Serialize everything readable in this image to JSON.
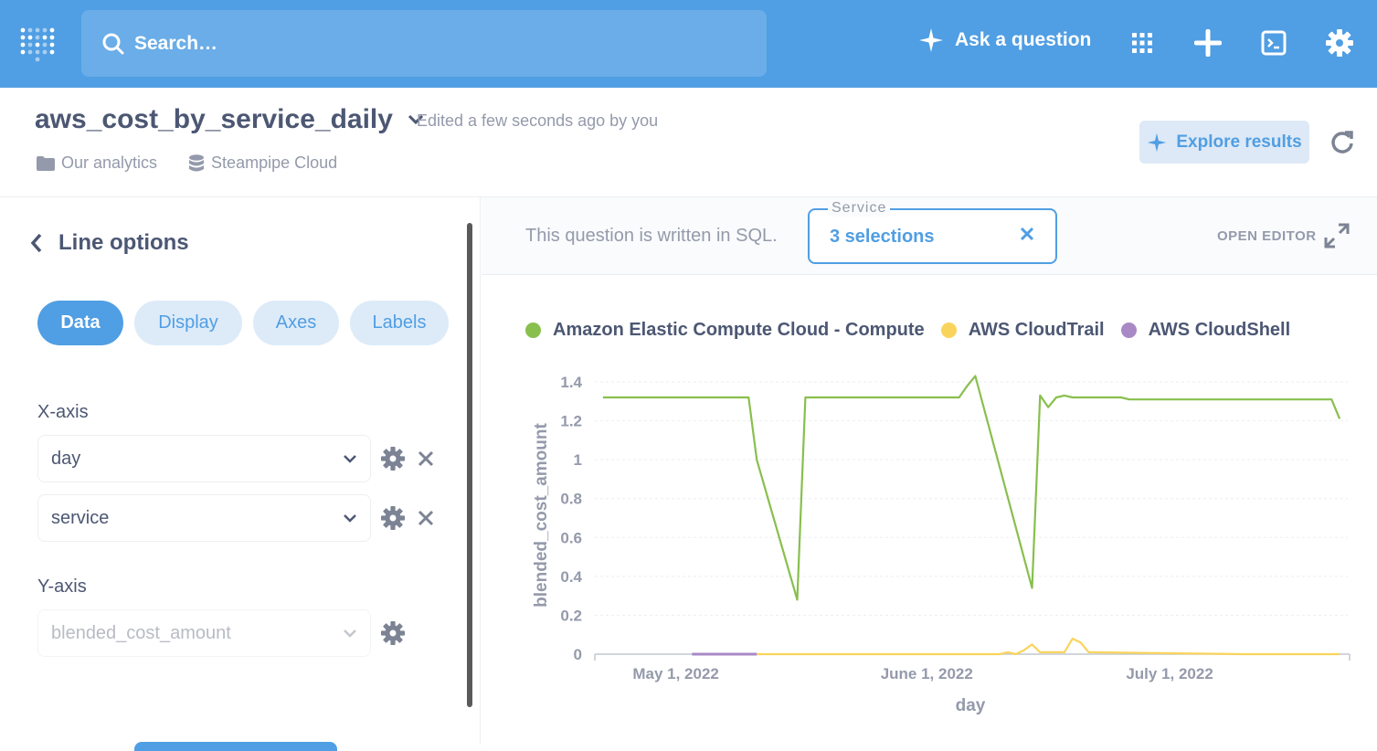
{
  "topbar": {
    "search_placeholder": "Search…",
    "ask_label": "Ask a question",
    "bg_color": "#509ee3",
    "icons": [
      "metabase-logo-icon",
      "search-icon",
      "sparkle-icon",
      "apps-grid-icon",
      "plus-icon",
      "sql-console-icon",
      "gear-icon"
    ]
  },
  "header": {
    "title": "aws_cost_by_service_daily",
    "edited": "Edited a few seconds ago by you",
    "collection": "Our analytics",
    "database": "Steampipe Cloud",
    "explore_label": "Explore results"
  },
  "sidebar": {
    "back_label": "Line options",
    "tabs": [
      {
        "label": "Data",
        "active": true
      },
      {
        "label": "Display",
        "active": false
      },
      {
        "label": "Axes",
        "active": false
      },
      {
        "label": "Labels",
        "active": false
      }
    ],
    "xaxis_label": "X-axis",
    "xaxis_fields": [
      "day",
      "service"
    ],
    "yaxis_label": "Y-axis",
    "yaxis_field": "blended_cost_amount"
  },
  "query": {
    "sql_notice": "This question is written in SQL.",
    "filter_label": "Service",
    "filter_value": "3 selections",
    "open_editor": "OPEN EDITOR"
  },
  "chart_data": {
    "type": "line",
    "xlabel": "day",
    "ylabel": "blended_cost_amount",
    "ylim": [
      0,
      1.4
    ],
    "y_ticks": [
      "0",
      "0.2",
      "0.4",
      "0.6",
      "0.8",
      "1",
      "1.2",
      "1.4"
    ],
    "x_ticks": [
      {
        "date": "2022-05-01",
        "label": "May 1, 2022"
      },
      {
        "date": "2022-06-01",
        "label": "June 1, 2022"
      },
      {
        "date": "2022-07-01",
        "label": "July 1, 2022"
      }
    ],
    "x_range": [
      "2022-04-21",
      "2022-07-23"
    ],
    "legend_position": "top-left",
    "grid": true,
    "series": [
      {
        "name": "Amazon Elastic Compute Cloud - Compute",
        "color": "#88bf4d",
        "points": [
          [
            "2022-04-22",
            1.32
          ],
          [
            "2022-05-01",
            1.32
          ],
          [
            "2022-05-10",
            1.32
          ],
          [
            "2022-05-11",
            1.0
          ],
          [
            "2022-05-16",
            0.28
          ],
          [
            "2022-05-17",
            1.32
          ],
          [
            "2022-05-25",
            1.32
          ],
          [
            "2022-06-05",
            1.32
          ],
          [
            "2022-06-06",
            1.38
          ],
          [
            "2022-06-07",
            1.43
          ],
          [
            "2022-06-14",
            0.34
          ],
          [
            "2022-06-15",
            1.33
          ],
          [
            "2022-06-16",
            1.27
          ],
          [
            "2022-06-17",
            1.32
          ],
          [
            "2022-06-18",
            1.33
          ],
          [
            "2022-06-19",
            1.32
          ],
          [
            "2022-06-25",
            1.32
          ],
          [
            "2022-06-26",
            1.31
          ],
          [
            "2022-07-10",
            1.31
          ],
          [
            "2022-07-21",
            1.31
          ],
          [
            "2022-07-22",
            1.21
          ]
        ]
      },
      {
        "name": "AWS CloudTrail",
        "color": "#f9d45c",
        "points": [
          [
            "2022-05-11",
            0.0
          ],
          [
            "2022-06-10",
            0.0
          ],
          [
            "2022-06-11",
            0.01
          ],
          [
            "2022-06-12",
            0.0
          ],
          [
            "2022-06-13",
            0.02
          ],
          [
            "2022-06-14",
            0.05
          ],
          [
            "2022-06-15",
            0.01
          ],
          [
            "2022-06-18",
            0.01
          ],
          [
            "2022-06-19",
            0.08
          ],
          [
            "2022-06-20",
            0.06
          ],
          [
            "2022-06-21",
            0.01
          ],
          [
            "2022-07-10",
            0.0
          ],
          [
            "2022-07-22",
            0.0
          ]
        ]
      },
      {
        "name": "AWS CloudShell",
        "color": "#a989c5",
        "points": [
          [
            "2022-05-03",
            0.0
          ],
          [
            "2022-05-11",
            0.0
          ]
        ]
      }
    ]
  }
}
